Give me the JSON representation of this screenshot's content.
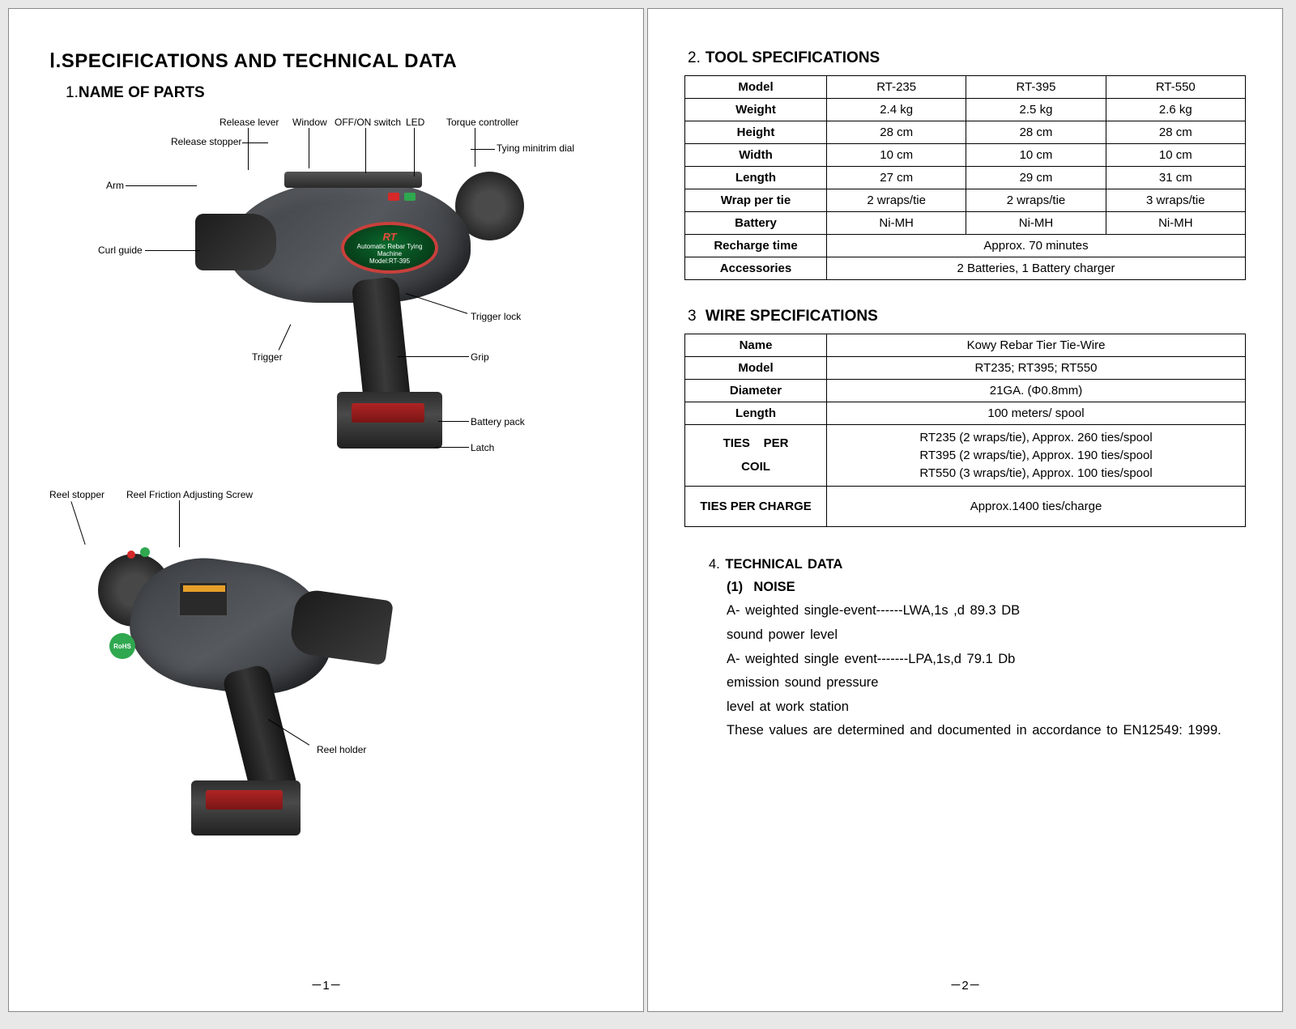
{
  "page_left": {
    "main_title": "Ⅰ.SPECIFICATIONS AND TECHNICAL DATA",
    "section1_num": "1.",
    "section1_title": "NAME OF PARTS",
    "labels_top": {
      "release_lever": "Release lever",
      "window": "Window",
      "off_on": "OFF/ON switch",
      "led": "LED",
      "torque": "Torque controller",
      "release_stopper": "Release stopper",
      "trim_dial": "Tying minitrim dial",
      "arm": "Arm",
      "curl_guide": "Curl guide",
      "trigger": "Trigger",
      "trigger_lock": "Trigger lock",
      "grip": "Grip",
      "battery_pack": "Battery pack",
      "latch": "Latch"
    },
    "labels_bottom": {
      "reel_stopper": "Reel stopper",
      "reel_friction": "Reel Friction Adjusting Screw",
      "reel_holder": "Reel holder"
    },
    "badge": {
      "brand": "RT",
      "line1": "Automatic Rebar Tying Machine",
      "line2": "Model:RT-395"
    },
    "rohs": "RoHS",
    "page_num": "－1－"
  },
  "page_right": {
    "sec2_num": "2.",
    "sec2_title": "TOOL SPECIFICATIONS",
    "tool_table": {
      "rows": [
        {
          "h": "Model",
          "c": [
            "RT-235",
            "RT-395",
            "RT-550"
          ]
        },
        {
          "h": "Weight",
          "c": [
            "2.4 kg",
            "2.5 kg",
            "2.6 kg"
          ]
        },
        {
          "h": "Height",
          "c": [
            "28 cm",
            "28 cm",
            "28 cm"
          ]
        },
        {
          "h": "Width",
          "c": [
            "10 cm",
            "10 cm",
            "10 cm"
          ]
        },
        {
          "h": "Length",
          "c": [
            "27 cm",
            "29 cm",
            "31 cm"
          ]
        },
        {
          "h": "Wrap per tie",
          "c": [
            "2 wraps/tie",
            "2 wraps/tie",
            "3 wraps/tie"
          ]
        },
        {
          "h": "Battery",
          "c": [
            "Ni-MH",
            "Ni-MH",
            "Ni-MH"
          ]
        }
      ],
      "recharge_h": "Recharge time",
      "recharge_v": "Approx. 70 minutes",
      "acc_h": "Accessories",
      "acc_v": "2 Batteries, 1 Battery charger"
    },
    "sec3_num": "3",
    "sec3_title": "WIRE SPECIFICATIONS",
    "wire_table": {
      "name_h": "Name",
      "name_v": "Kowy Rebar Tier Tie-Wire",
      "model_h": "Model",
      "model_v": "RT235;  RT395;  RT550",
      "dia_h": "Diameter",
      "dia_v": "21GA. (Φ0.8mm)",
      "len_h": "Length",
      "len_v": "100 meters/ spool",
      "tpc_h1": "TIES",
      "tpc_h2": "PER",
      "tpc_h3": "COIL",
      "tpc_l1": "RT235  (2 wraps/tie), Approx. 260 ties/spool",
      "tpc_l2": "RT395  (2 wraps/tie), Approx. 190 ties/spool",
      "tpc_l3": "RT550  (3 wraps/tie), Approx. 100 ties/spool",
      "tpch_h": "TIES PER CHARGE",
      "tpch_v": "Approx.1400 ties/charge"
    },
    "sec4_num": "4.",
    "sec4_title": "TECHNICAL DATA",
    "sec4_sub_num": "(1)",
    "sec4_sub_title": "NOISE",
    "noise_l1": "A- weighted single-event------LWA,1s ,d 89.3 DB",
    "noise_l2": "sound power level",
    "noise_l3": "A- weighted single event-------LPA,1s,d 79.1 Db",
    "noise_l4": "emission sound pressure",
    "noise_l5": "level at work station",
    "noise_l6": "These values are determined and documented in accordance to EN12549: 1999.",
    "page_num": "－2－"
  },
  "colors": {
    "page_bg": "#ffffff",
    "border": "#000000",
    "tool_body": "#4c5055",
    "accent_red": "#d62828",
    "accent_green": "#2fa84f",
    "badge_green": "#0b6b2d",
    "badge_ring": "#c9403c"
  }
}
